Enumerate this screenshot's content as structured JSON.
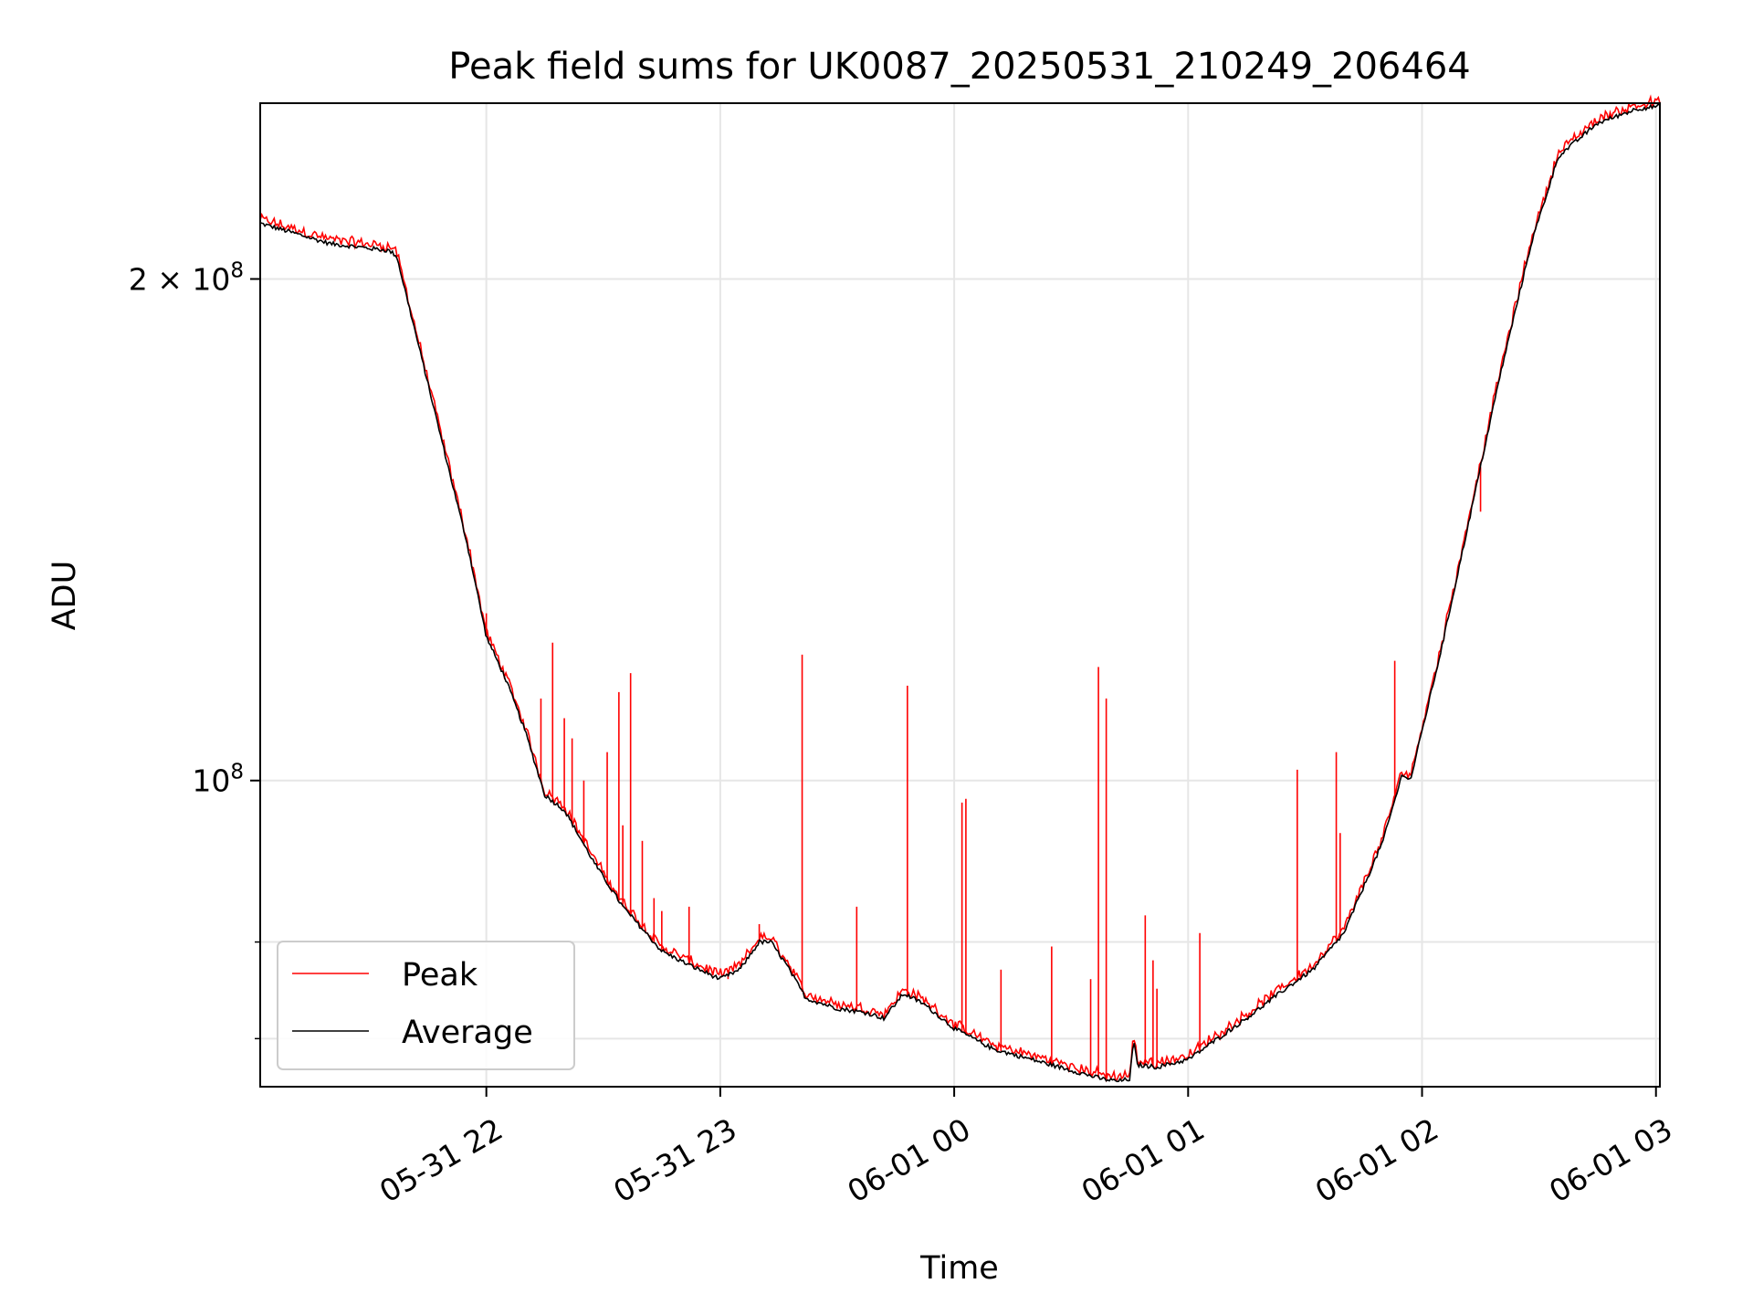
{
  "chart_data": {
    "type": "line",
    "title": "Peak field sums for UK0087_20250531_210249_206464",
    "xlabel": "Time",
    "ylabel": "ADU",
    "y_scale": "log",
    "grid": true,
    "legend_position": "lower-left",
    "xlim": [
      "2025-05-31 21:02",
      "2025-06-01 03:01"
    ],
    "ylim": [
      65500000,
      255000000
    ],
    "x_ticks": [
      {
        "t": "2025-05-31 22:00",
        "label": "05-31 22"
      },
      {
        "t": "2025-05-31 23:00",
        "label": "05-31 23"
      },
      {
        "t": "2025-06-01 00:00",
        "label": "06-01 00"
      },
      {
        "t": "2025-06-01 01:00",
        "label": "06-01 01"
      },
      {
        "t": "2025-06-01 02:00",
        "label": "06-01 02"
      },
      {
        "t": "2025-06-01 03:00",
        "label": "06-01 03"
      }
    ],
    "y_major_ticks": [
      {
        "v": 100000000,
        "base": "10",
        "exp": "8",
        "mult": ""
      },
      {
        "v": 200000000,
        "base": "10",
        "exp": "8",
        "mult": "2 × "
      }
    ],
    "y_minor_gridlines": [
      70000000,
      80000000
    ],
    "series": [
      {
        "name": "Average",
        "color": "#000000",
        "points": [
          [
            "2025-05-31 21:02",
            216000000
          ],
          [
            "2025-05-31 21:20",
            210000000
          ],
          [
            "2025-05-31 21:35",
            208000000
          ],
          [
            "2025-05-31 21:37",
            206500000
          ],
          [
            "2025-05-31 21:42",
            185000000
          ],
          [
            "2025-05-31 21:50",
            155000000
          ],
          [
            "2025-05-31 21:55",
            139000000
          ],
          [
            "2025-05-31 22:00",
            122000000
          ],
          [
            "2025-05-31 22:05",
            115000000
          ],
          [
            "2025-05-31 22:10",
            107000000
          ],
          [
            "2025-05-31 22:15",
            98000000
          ],
          [
            "2025-05-31 22:20",
            96000000
          ],
          [
            "2025-05-31 22:28",
            89000000
          ],
          [
            "2025-05-31 22:35",
            84000000
          ],
          [
            "2025-05-31 22:45",
            79000000
          ],
          [
            "2025-05-31 22:52",
            77500000
          ],
          [
            "2025-05-31 23:00",
            76000000
          ],
          [
            "2025-05-31 23:05",
            77000000
          ],
          [
            "2025-05-31 23:10",
            80000000
          ],
          [
            "2025-05-31 23:13",
            80000000
          ],
          [
            "2025-05-31 23:17",
            77500000
          ],
          [
            "2025-05-31 23:22",
            74000000
          ],
          [
            "2025-05-31 23:30",
            73000000
          ],
          [
            "2025-05-31 23:38",
            72500000
          ],
          [
            "2025-05-31 23:42",
            72000000
          ],
          [
            "2025-05-31 23:47",
            74500000
          ],
          [
            "2025-05-31 23:52",
            73500000
          ],
          [
            "2025-06-01 00:00",
            71000000
          ],
          [
            "2025-06-01 00:10",
            69000000
          ],
          [
            "2025-06-01 00:20",
            68000000
          ],
          [
            "2025-06-01 00:30",
            67000000
          ],
          [
            "2025-06-01 00:38",
            66200000
          ],
          [
            "2025-06-01 00:42",
            66000000
          ],
          [
            "2025-06-01 00:45",
            66200000
          ],
          [
            "2025-06-01 00:46",
            69800000
          ],
          [
            "2025-06-01 00:47",
            67500000
          ],
          [
            "2025-06-01 00:52",
            67300000
          ],
          [
            "2025-06-01 01:00",
            68000000
          ],
          [
            "2025-06-01 01:15",
            72000000
          ],
          [
            "2025-06-01 01:25",
            75000000
          ],
          [
            "2025-06-01 01:32",
            77000000
          ],
          [
            "2025-06-01 01:40",
            81000000
          ],
          [
            "2025-06-01 01:50",
            92000000
          ],
          [
            "2025-06-01 01:55",
            101000000
          ],
          [
            "2025-06-01 01:57",
            100000000
          ],
          [
            "2025-06-01 02:05",
            120000000
          ],
          [
            "2025-06-01 02:12",
            143000000
          ],
          [
            "2025-06-01 02:20",
            175000000
          ],
          [
            "2025-06-01 02:28",
            210000000
          ],
          [
            "2025-06-01 02:35",
            237000000
          ],
          [
            "2025-06-01 02:45",
            248000000
          ],
          [
            "2025-06-01 02:55",
            253000000
          ],
          [
            "2025-06-01 03:01",
            254000000
          ]
        ]
      },
      {
        "name": "Peak",
        "color": "#ff0000",
        "spikes": [
          [
            "2025-05-31 22:00",
            126000000
          ],
          [
            "2025-05-31 22:17",
            121000000
          ],
          [
            "2025-05-31 22:14",
            112000000
          ],
          [
            "2025-05-31 22:20",
            109000000
          ],
          [
            "2025-05-31 22:22",
            106000000
          ],
          [
            "2025-05-31 22:25",
            100000000
          ],
          [
            "2025-05-31 22:31",
            104000000
          ],
          [
            "2025-05-31 22:34",
            113000000
          ],
          [
            "2025-05-31 22:37",
            116000000
          ],
          [
            "2025-05-31 22:35",
            94000000
          ],
          [
            "2025-05-31 22:40",
            92000000
          ],
          [
            "2025-05-31 22:43",
            85000000
          ],
          [
            "2025-05-31 22:45",
            83500000
          ],
          [
            "2025-05-31 22:52",
            84000000
          ],
          [
            "2025-05-31 23:21",
            119000000
          ],
          [
            "2025-05-31 23:35",
            84000000
          ],
          [
            "2025-05-31 23:48",
            114000000
          ],
          [
            "2025-06-01 00:02",
            97000000
          ],
          [
            "2025-06-01 00:03",
            97500000
          ],
          [
            "2025-06-01 00:12",
            77000000
          ],
          [
            "2025-06-01 00:25",
            79500000
          ],
          [
            "2025-06-01 00:35",
            76000000
          ],
          [
            "2025-06-01 00:37",
            117000000
          ],
          [
            "2025-06-01 00:39",
            112000000
          ],
          [
            "2025-06-01 00:49",
            83000000
          ],
          [
            "2025-06-01 00:51",
            78000000
          ],
          [
            "2025-06-01 00:52",
            75000000
          ],
          [
            "2025-06-01 01:03",
            81000000
          ],
          [
            "2025-06-01 01:28",
            101500000
          ],
          [
            "2025-06-01 01:38",
            104000000
          ],
          [
            "2025-06-01 01:39",
            93000000
          ],
          [
            "2025-06-01 01:53",
            118000000
          ],
          [
            "2025-06-01 02:15",
            145000000
          ],
          [
            "2025-05-31 23:02",
            76000000
          ],
          [
            "2025-05-31 23:10",
            82000000
          ]
        ]
      }
    ],
    "legend": [
      {
        "label": "Peak",
        "color": "#ff0000"
      },
      {
        "label": "Average",
        "color": "#000000"
      }
    ]
  }
}
